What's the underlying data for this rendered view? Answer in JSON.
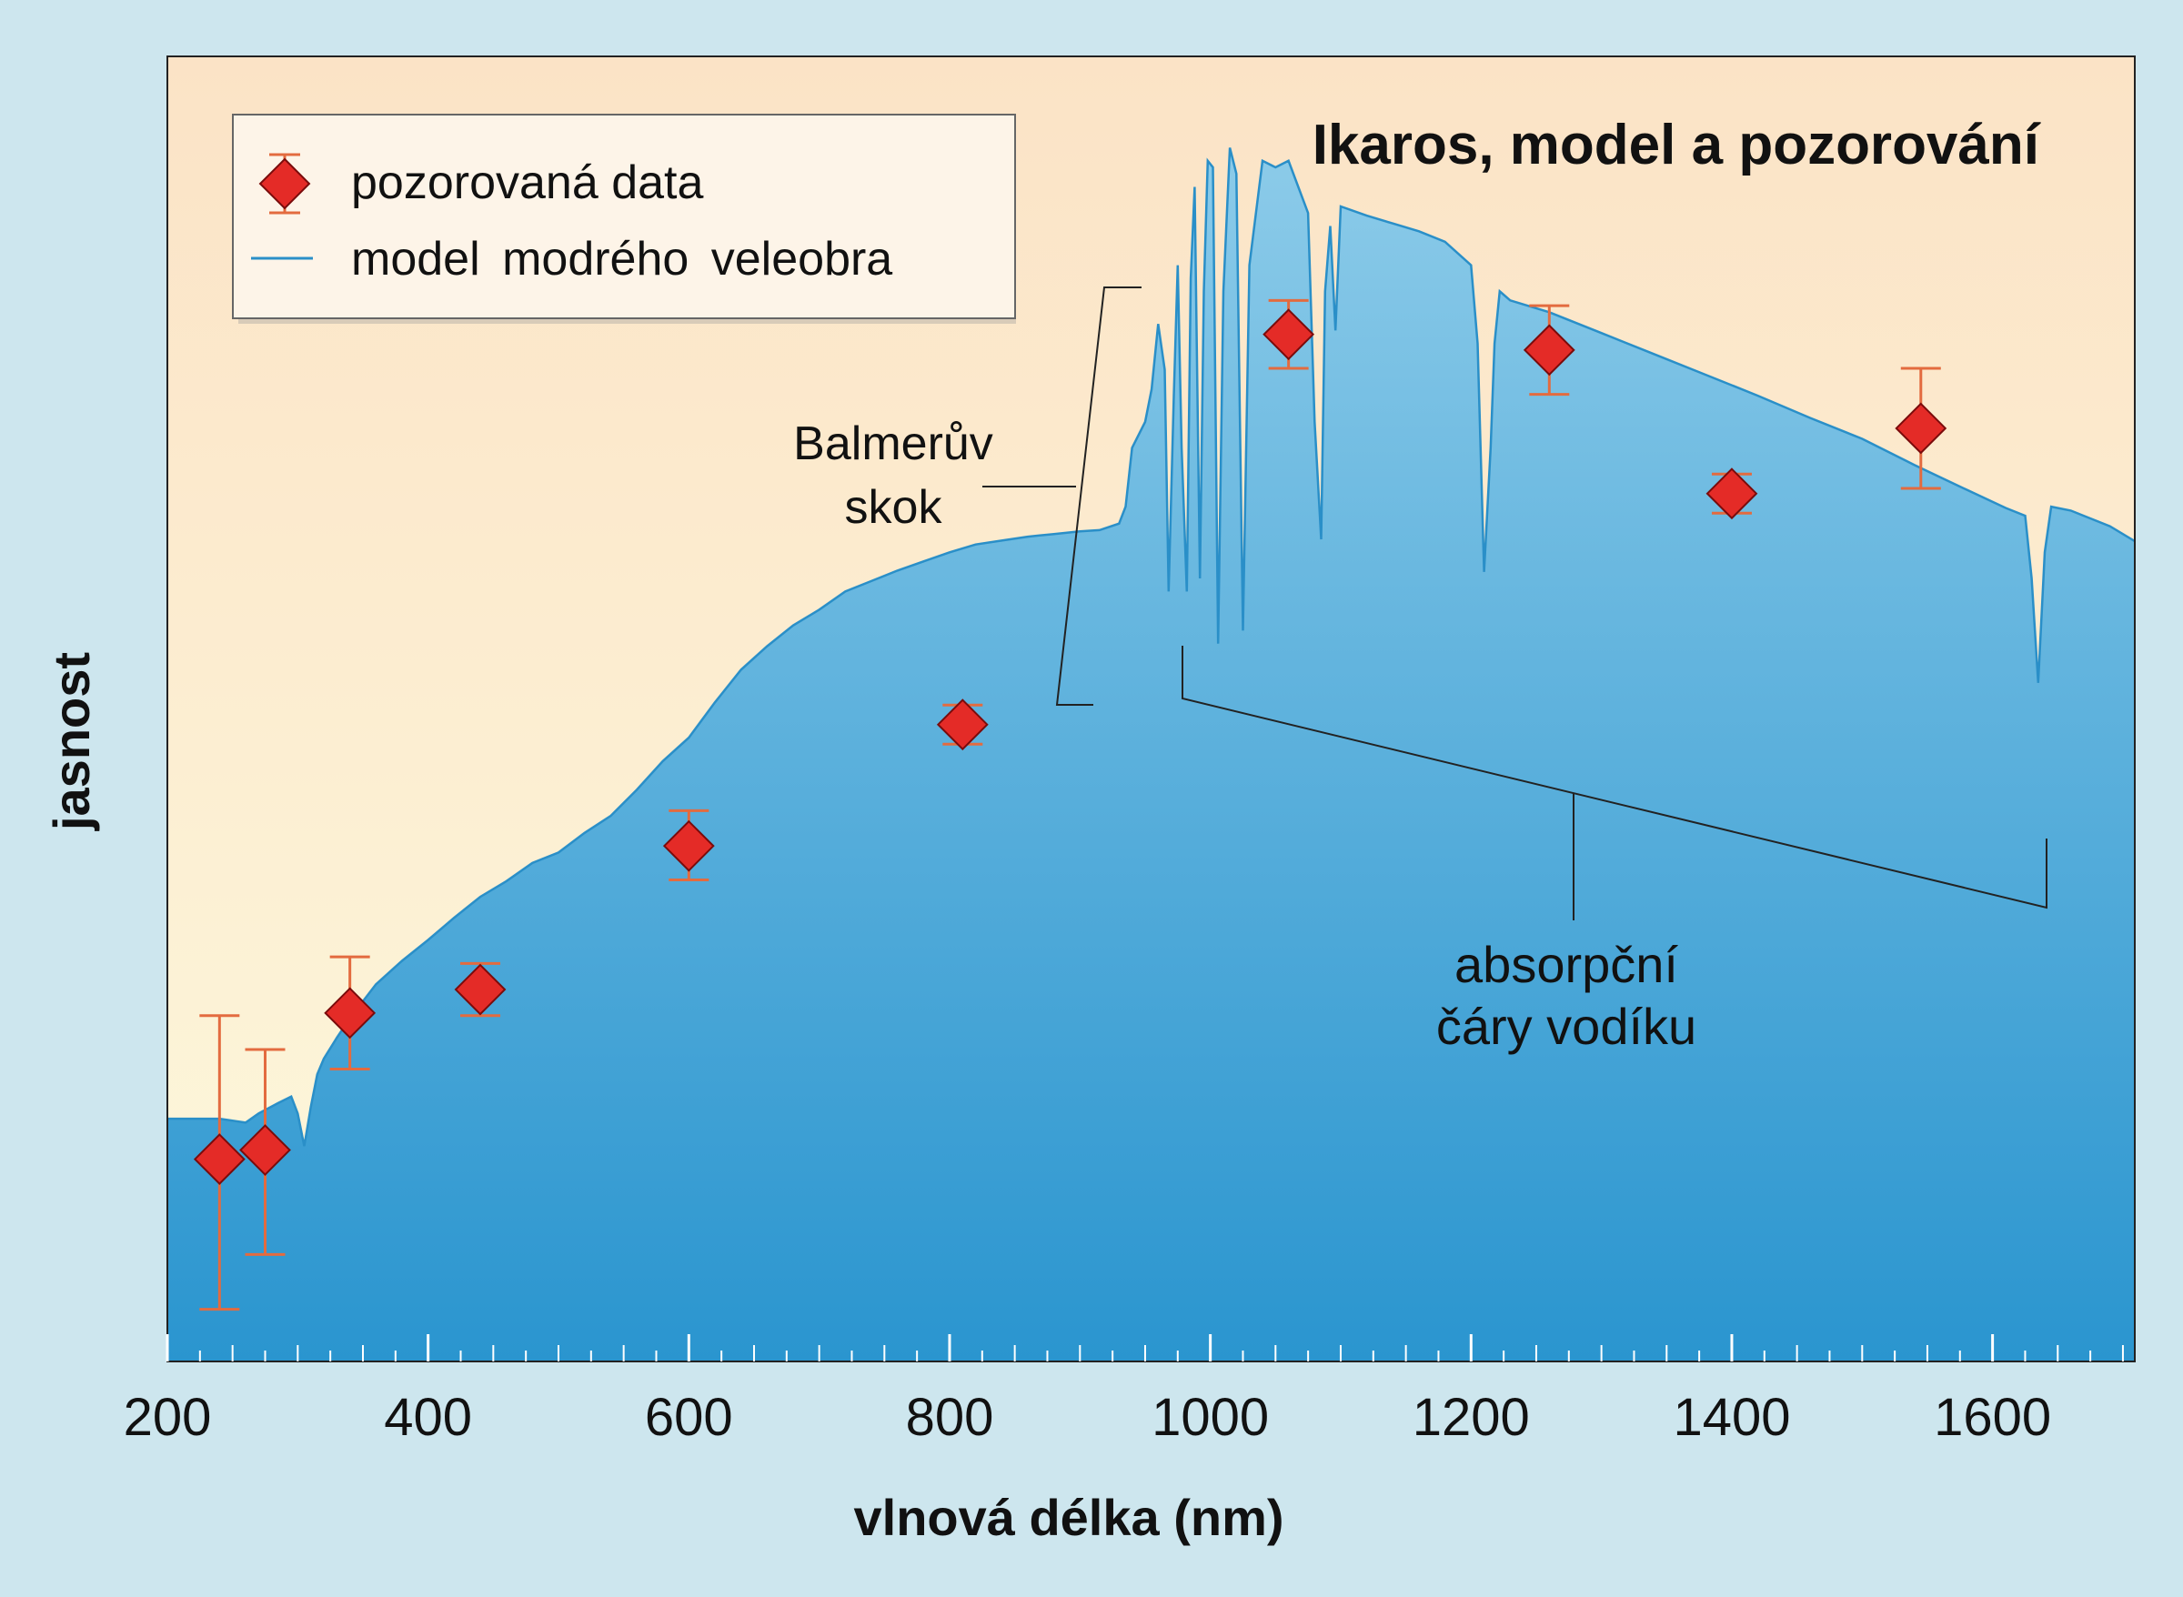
{
  "chart_data": {
    "type": "line",
    "title": "Ikaros, model a pozorování",
    "xlabel": "vlnová délka (nm)",
    "ylabel": "jasnost",
    "xlim": [
      200,
      1710
    ],
    "ylim": [
      0,
      100
    ],
    "x_ticks": [
      200,
      400,
      600,
      800,
      1000,
      1200,
      1400,
      1600
    ],
    "x_tick_labels": [
      "200",
      "400",
      "600",
      "800",
      "1000",
      "1200",
      "1400",
      "1600"
    ],
    "y_tick_labels_shown": false,
    "grid": false,
    "legend_position": "top-left",
    "legend": [
      {
        "label": "pozorovaná data",
        "marker": "red-diamond-with-errorbar"
      },
      {
        "label": "model modrého veleobra",
        "marker": "blue-line"
      }
    ],
    "series": [
      {
        "name": "model modrého veleobra",
        "kind": "area",
        "x": [
          200,
          240,
          260,
          270,
          285,
          295,
          300,
          305,
          310,
          315,
          320,
          330,
          340,
          360,
          380,
          400,
          420,
          440,
          460,
          480,
          500,
          520,
          540,
          560,
          580,
          600,
          620,
          640,
          660,
          680,
          700,
          720,
          740,
          760,
          780,
          800,
          820,
          840,
          860,
          880,
          900,
          915,
          930,
          935,
          940,
          950,
          955,
          960,
          965,
          968,
          972,
          975,
          978,
          982,
          985,
          988,
          992,
          995,
          998,
          1002,
          1006,
          1010,
          1015,
          1020,
          1025,
          1030,
          1040,
          1050,
          1060,
          1075,
          1080,
          1085,
          1088,
          1092,
          1096,
          1100,
          1120,
          1140,
          1160,
          1180,
          1200,
          1205,
          1210,
          1215,
          1218,
          1222,
          1230,
          1260,
          1300,
          1340,
          1380,
          1420,
          1460,
          1500,
          1540,
          1580,
          1610,
          1625,
          1630,
          1635,
          1640,
          1645,
          1660,
          1690,
          1710
        ],
        "values": [
          18.6,
          18.6,
          18.3,
          19.0,
          19.8,
          20.3,
          19.0,
          16.5,
          19.5,
          22.0,
          23.2,
          24.8,
          26.3,
          28.9,
          30.7,
          32.3,
          34.0,
          35.6,
          36.8,
          38.2,
          39.0,
          40.5,
          41.8,
          43.8,
          46.0,
          47.8,
          50.5,
          53.0,
          54.8,
          56.4,
          57.6,
          59.0,
          59.8,
          60.6,
          61.3,
          62.0,
          62.6,
          62.9,
          63.2,
          63.4,
          63.6,
          63.7,
          64.2,
          65.5,
          70.0,
          72.0,
          74.5,
          79.5,
          76.0,
          59.0,
          74.0,
          84.0,
          70.0,
          59.0,
          83.0,
          90.0,
          60.0,
          82.0,
          92.0,
          91.5,
          55.0,
          82.0,
          93.0,
          91.0,
          56.0,
          84.0,
          92.0,
          91.5,
          92.0,
          88.0,
          72.0,
          63.0,
          82.0,
          87.0,
          79.0,
          88.5,
          87.8,
          87.2,
          86.6,
          85.8,
          84.0,
          78.0,
          60.5,
          70.0,
          78.0,
          82.0,
          81.3,
          80.4,
          78.8,
          77.2,
          75.6,
          74.0,
          72.3,
          70.7,
          68.7,
          66.8,
          65.4,
          64.8,
          60.0,
          52.0,
          62.0,
          65.5,
          65.2,
          64.0,
          62.8
        ]
      },
      {
        "name": "pozorovaná data",
        "kind": "scatter-errorbar",
        "x": [
          240,
          275,
          340,
          440,
          600,
          810,
          1060,
          1260,
          1400,
          1545
        ],
        "values": [
          15.5,
          16.2,
          26.7,
          28.5,
          39.5,
          48.8,
          78.7,
          77.5,
          66.5,
          71.5
        ],
        "err_low": [
          11.5,
          8.0,
          4.3,
          2.0,
          2.6,
          1.5,
          2.6,
          3.4,
          1.5,
          4.6
        ],
        "err_high": [
          11.0,
          7.7,
          4.3,
          2.0,
          2.7,
          1.5,
          2.6,
          3.4,
          1.5,
          4.6
        ]
      }
    ],
    "annotations": [
      {
        "lines": [
          "Balmerův",
          "skok"
        ],
        "target": "skok jasnosti u 940 nm"
      },
      {
        "lines": [
          "absorpční",
          "čáry vodíku"
        ],
        "target": "čáry mezi 980 a 1640 nm"
      }
    ]
  },
  "colors": {
    "page_background": "#cde6ee",
    "plot_background_top": "#fbe3c6",
    "plot_background_bottom": "#fdf8dc",
    "area_top": "#8ccbe9",
    "area_bottom": "#2a95cf",
    "model_line": "#2a8fc8",
    "marker_fill": "#e42b27",
    "marker_stroke": "#7a0b0b",
    "errorbar": "#e36b3f"
  }
}
